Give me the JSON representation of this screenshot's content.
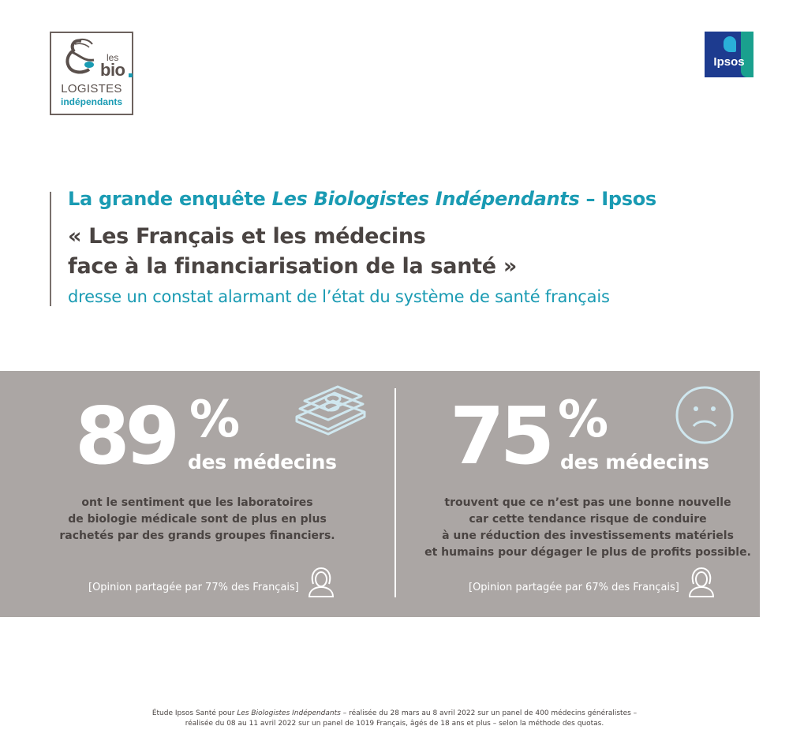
{
  "logo_left": {
    "les": "les",
    "bio": "bio",
    "logistes": "LOGISTES",
    "independants": "indépendants"
  },
  "logo_right": {
    "text": "Ipsos"
  },
  "title": {
    "line1_a": "La grande enquête ",
    "line1_b": "Les Biologistes Indépendants",
    "line1_c": " – Ipsos",
    "line2": "« Les Français et les médecins",
    "line3": "face à la financiarisation de la santé »",
    "line4": "dresse un constat alarmant de l’état du système de santé français"
  },
  "stats": [
    {
      "value": "89",
      "unit": "%",
      "subject": "des médecins",
      "desc": [
        "ont le sentiment que les laboratoires",
        "de biologie médicale sont de plus en plus",
        "rachetés par des grands groupes financiers."
      ],
      "opinion": "[Opinion partagée par 77% des Français]",
      "icon": "money-stack-icon"
    },
    {
      "value": "75",
      "unit": "%",
      "subject": "des médecins",
      "desc": [
        "trouvent que ce n’est pas une bonne nouvelle",
        "car cette tendance risque de conduire",
        "à une réduction des investissements matériels",
        "et humains pour dégager le plus de profits possible."
      ],
      "opinion": "[Opinion partagée par 67% des Français]",
      "icon": "sad-face-icon"
    }
  ],
  "footer": {
    "line1_a": "Étude Ipsos Santé pour ",
    "line1_b": "Les Biologistes Indépendants",
    "line1_c": " – réalisée du 28 mars au 8 avril 2022 sur un panel de 400 médecins généralistes –",
    "line2": "réalisée du 08 au 11 avril 2022 sur un panel de 1019 Français, âgés de 18 ans et plus – selon la méthode des quotas."
  },
  "colors": {
    "accent": "#1a9bb3",
    "text": "#4a4442",
    "panel": "#aba6a4",
    "ipsos_blue": "#1d3b8f",
    "ipsos_teal": "#1aa08e"
  }
}
